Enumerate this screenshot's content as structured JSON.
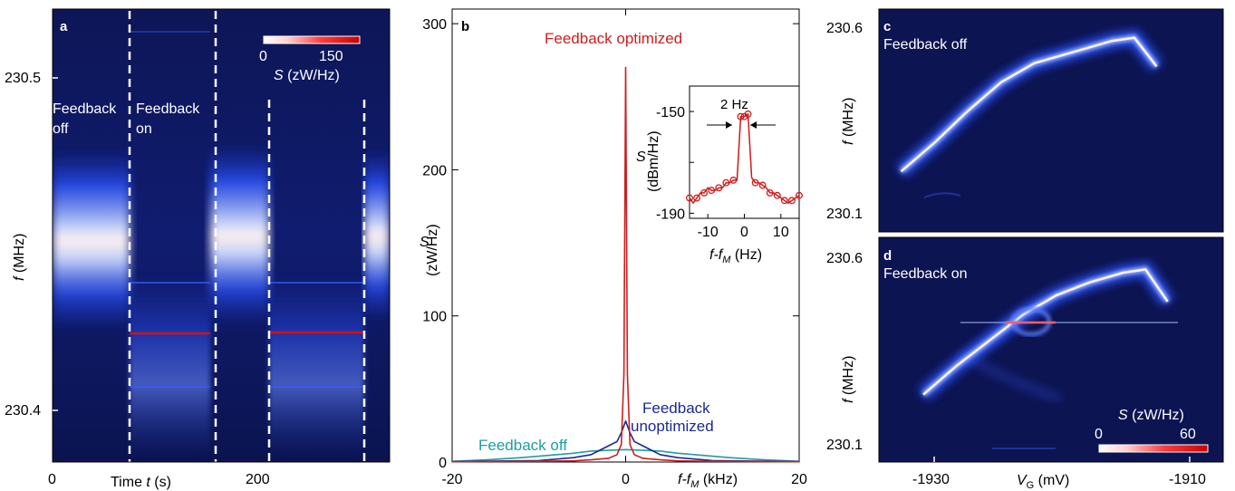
{
  "figure": {
    "panel_a": {
      "letter": "a",
      "y_ticks": [
        "230.5",
        "230.4"
      ],
      "x_ticks": [
        "0",
        "200"
      ],
      "ylabel_f": "f",
      "ylabel_unit": " (MHz)",
      "xlabel_pre": "Time ",
      "xlabel_t": "t",
      "xlabel_unit": " (s)",
      "cbar_ticks": [
        "0",
        "150"
      ],
      "cbar_label_S": "S",
      "cbar_label_unit": " (zW/Hz)",
      "text_off_1": "Feedback",
      "text_off_2": "off",
      "text_on_1": "Feedback",
      "text_on_2": "on"
    },
    "panel_b": {
      "letter": "b",
      "title_optimized": "Feedback optimized",
      "label_off": "Feedback off",
      "label_unopt_1": "Feedback",
      "label_unopt_2": "unoptimized",
      "ylabel_S": "S",
      "ylabel_unit": "(zW/Hz)",
      "xlabel_f": "f-f",
      "xlabel_sub": "M",
      "xlabel_unit": " (kHz)",
      "inset": {
        "ylabel_S": "S",
        "ylabel_unit": "(dBm/Hz)",
        "xlabel_f": "f-f",
        "xlabel_sub": "M",
        "xlabel_unit": " (Hz)",
        "annotation": "2 Hz"
      }
    },
    "panel_c": {
      "letter": "c",
      "label": "Feedback off",
      "y_ticks": [
        "230.6",
        "230.1"
      ],
      "ylabel_f": "f",
      "ylabel_unit": " (MHz)"
    },
    "panel_d": {
      "letter": "d",
      "label": "Feedback on",
      "y_ticks": [
        "230.6",
        "230.1"
      ],
      "ylabel_f": "f",
      "ylabel_unit": " (MHz)",
      "x_ticks": [
        "-1930",
        "-1910"
      ],
      "xlabel_V": "V",
      "xlabel_sub": "G",
      "xlabel_unit": " (mV)",
      "cbar_ticks": [
        "0",
        "60"
      ],
      "cbar_label_S": "S",
      "cbar_label_unit": " (zW/Hz)"
    }
  },
  "chart_data": [
    {
      "type": "heatmap",
      "panel": "a",
      "x_ticks": [
        0,
        200
      ],
      "y_ticks": [
        230.4,
        230.5
      ],
      "xlim": [
        0,
        356
      ],
      "ylim": [
        230.377,
        230.518
      ],
      "colorbar": {
        "label": "S (zW/Hz)",
        "range": [
          0,
          150
        ],
        "colors": [
          "#ffffff",
          "#ff3030",
          "#cc0000"
        ]
      },
      "segments": [
        {
          "state": "Feedback off",
          "t_range": [
            0,
            87
          ],
          "center_f": 230.448
        },
        {
          "state": "Feedback on",
          "t_range": [
            87,
            176
          ],
          "line_f": 230.425
        },
        {
          "state": "Feedback off",
          "t_range": [
            176,
            218
          ],
          "center_f": 230.45
        },
        {
          "state": "Feedback on",
          "t_range": [
            218,
            332
          ],
          "line_f": 230.425
        },
        {
          "state": "Feedback off",
          "t_range": [
            332,
            356
          ],
          "center_f": 230.45
        }
      ],
      "dashed_lines_t": [
        87,
        176,
        218,
        332
      ]
    },
    {
      "type": "line",
      "panel": "b",
      "xlabel": "f-fM (kHz)",
      "ylabel": "S (zW/Hz)",
      "xlim": [
        -20,
        20
      ],
      "ylim": [
        0,
        310
      ],
      "x_ticks": [
        -20,
        0,
        20
      ],
      "y_ticks": [
        0,
        100,
        200,
        300
      ],
      "series": [
        {
          "name": "Feedback optimized",
          "color": "#cc1f1f",
          "x": [
            -20,
            -10,
            -6,
            -4,
            -2,
            -1,
            -0.5,
            -0.2,
            0,
            0.2,
            0.5,
            1,
            2,
            4,
            6,
            10,
            20
          ],
          "y": [
            0.2,
            0.5,
            0.8,
            1.5,
            2.5,
            5,
            12,
            60,
            270,
            60,
            12,
            5,
            2.5,
            1.5,
            0.8,
            0.5,
            0.2
          ]
        },
        {
          "name": "Feedback off",
          "color": "#1f9e9e",
          "x": [
            -20,
            -16,
            -12,
            -10,
            -8,
            -6,
            -4,
            -2,
            0,
            2,
            4,
            6,
            8,
            10,
            12,
            16,
            20
          ],
          "y": [
            0.5,
            1.5,
            3,
            4,
            5,
            6,
            7.5,
            8,
            8.5,
            8,
            7.5,
            6,
            5,
            4,
            3,
            1.5,
            0.5
          ]
        },
        {
          "name": "Feedback unoptimized",
          "color": "#1a2a8f",
          "x": [
            -20,
            -10,
            -6,
            -4,
            -3,
            -2,
            -1,
            -0.5,
            0,
            0.5,
            1,
            2,
            3,
            4,
            6,
            10,
            20
          ],
          "y": [
            0.3,
            1,
            3,
            5,
            8,
            11,
            14,
            20,
            28,
            20,
            14,
            11,
            8,
            5,
            3,
            1,
            0.3
          ]
        }
      ],
      "inset": {
        "type": "scatter",
        "xlabel": "f-fM (Hz)",
        "ylabel": "S (dBm/Hz)",
        "xlim": [
          -15,
          15
        ],
        "ylim": [
          -192,
          -140
        ],
        "x_ticks": [
          -10,
          0,
          10
        ],
        "y_ticks": [
          -190,
          -170,
          -150
        ],
        "annotation": "2 Hz",
        "x": [
          -15,
          -14,
          -13,
          -12,
          -11,
          -10,
          -9,
          -8,
          -7,
          -6,
          -5,
          -4,
          -3,
          -2,
          -1,
          0,
          1,
          2,
          3,
          4,
          5,
          6,
          7,
          8,
          9,
          10,
          11,
          12,
          13,
          14,
          15
        ],
        "y": [
          -184,
          -186,
          -184,
          -182,
          -182,
          -180,
          -181,
          -181,
          -180,
          -180,
          -178,
          -178,
          -177,
          -177,
          -152,
          -152,
          -151,
          -176,
          -178,
          -178,
          -179,
          -180,
          -182,
          -182,
          -183,
          -184,
          -185,
          -186,
          -185,
          -184,
          -183
        ]
      }
    },
    {
      "type": "heatmap",
      "panel": "c",
      "state": "Feedback off",
      "xlim": [
        -1936,
        -1905
      ],
      "ylim": [
        229.96,
        230.66
      ],
      "y_ticks": [
        230.1,
        230.6
      ],
      "ridge": {
        "V": [
          -1934,
          -1931,
          -1928,
          -1925,
          -1922,
          -1918,
          -1915,
          -1913,
          -1911
        ],
        "f": [
          230.15,
          230.24,
          230.34,
          230.43,
          230.49,
          230.53,
          230.56,
          230.57,
          230.48
        ]
      }
    },
    {
      "type": "heatmap",
      "panel": "d",
      "state": "Feedback on",
      "xlim": [
        -1936,
        -1905
      ],
      "ylim": [
        229.96,
        230.66
      ],
      "x_ticks": [
        -1930,
        -1910
      ],
      "y_ticks": [
        230.1,
        230.6
      ],
      "colorbar": {
        "label": "S (zW/Hz)",
        "range": [
          0,
          60
        ]
      },
      "locked_f": 230.44,
      "ridge": {
        "V": [
          -1932,
          -1929,
          -1926,
          -1923,
          -1920,
          -1917,
          -1914,
          -1912,
          -1910
        ],
        "f": [
          230.17,
          230.26,
          230.34,
          230.42,
          230.48,
          230.52,
          230.55,
          230.56,
          230.46
        ]
      }
    }
  ]
}
